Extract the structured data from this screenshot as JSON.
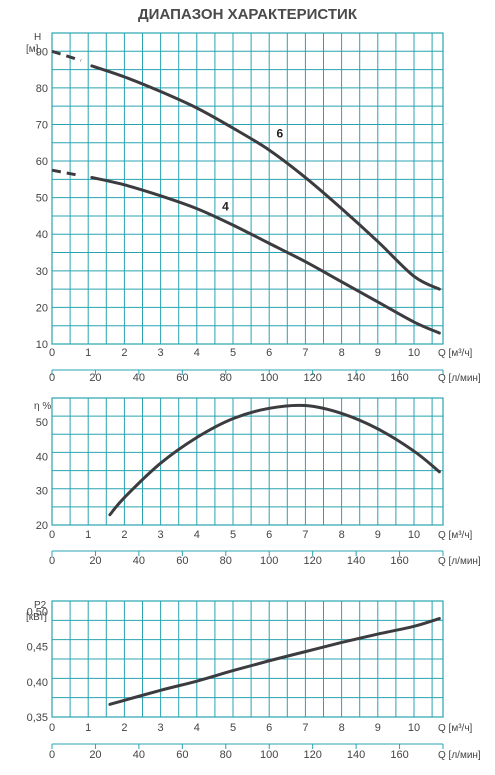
{
  "title": "ДИАПАЗОН ХАРАКТЕРИСТИК",
  "chart_data": [
    {
      "type": "line",
      "ylabel": "H",
      "yunit": "[м]",
      "xunit_q": "Q [м³/ч]",
      "xunit_l": "Q [л/мин]",
      "xlim": [
        0,
        10.8
      ],
      "ylim": [
        10,
        95
      ],
      "yticks": [
        10,
        20,
        30,
        40,
        50,
        60,
        70,
        80,
        90
      ],
      "xticks": [
        "0",
        "1",
        "2",
        "3",
        "4",
        "5",
        "6",
        "7",
        "8",
        "9",
        "10"
      ],
      "lticks": [
        "0",
        "20",
        "40",
        "60",
        "80",
        "100",
        "120",
        "140",
        "160"
      ],
      "series": [
        {
          "name": "6",
          "dashed": [
            [
              0,
              90
            ],
            [
              0.8,
              87.5
            ]
          ],
          "points": [
            [
              1.1,
              86
            ],
            [
              2,
              83
            ],
            [
              3,
              79
            ],
            [
              4,
              74.5
            ],
            [
              5,
              69
            ],
            [
              6,
              63
            ],
            [
              7,
              55.5
            ],
            [
              8,
              47
            ],
            [
              9,
              38
            ],
            [
              10,
              28.5
            ],
            [
              10.7,
              25
            ]
          ]
        },
        {
          "name": "4",
          "dashed": [
            [
              0,
              57.5
            ],
            [
              0.8,
              56
            ]
          ],
          "points": [
            [
              1.1,
              55.5
            ],
            [
              2,
              53.5
            ],
            [
              3,
              50.5
            ],
            [
              4,
              47
            ],
            [
              5,
              42.5
            ],
            [
              6,
              37.5
            ],
            [
              7,
              32.5
            ],
            [
              8,
              27
            ],
            [
              9,
              21.5
            ],
            [
              10,
              16
            ],
            [
              10.7,
              13
            ]
          ]
        }
      ]
    },
    {
      "type": "line",
      "ylabel": "η %",
      "xunit_q": "Q [м³/ч]",
      "xunit_l": "Q [л/мин]",
      "xlim": [
        0,
        10.8
      ],
      "ylim": [
        20,
        57
      ],
      "yticks": [
        20,
        30,
        40,
        50
      ],
      "xticks": [
        "0",
        "1",
        "2",
        "3",
        "4",
        "5",
        "6",
        "7",
        "8",
        "9",
        "10"
      ],
      "lticks": [
        "0",
        "20",
        "40",
        "60",
        "80",
        "100",
        "120",
        "140",
        "160"
      ],
      "series": [
        {
          "name": "",
          "points": [
            [
              1.6,
              23
            ],
            [
              2,
              28
            ],
            [
              3,
              38
            ],
            [
              4,
              45.5
            ],
            [
              5,
              51
            ],
            [
              6,
              54
            ],
            [
              7,
              54.8
            ],
            [
              8,
              52.5
            ],
            [
              9,
              48
            ],
            [
              10,
              41.5
            ],
            [
              10.7,
              35.5
            ]
          ]
        }
      ]
    },
    {
      "type": "line",
      "ylabel": "P2",
      "yunit": "[кВт]",
      "xunit_q": "Q [м³/ч]",
      "xunit_l": "Q [л/мин]",
      "xlim": [
        0,
        10.8
      ],
      "ylim": [
        0.35,
        0.515
      ],
      "yticks": [
        "0,35",
        "0,40",
        "0,45",
        "0,50"
      ],
      "yvals": [
        0.35,
        0.4,
        0.45,
        0.5
      ],
      "xticks": [
        "0",
        "1",
        "2",
        "3",
        "4",
        "5",
        "6",
        "7",
        "8",
        "9",
        "10"
      ],
      "lticks": [
        "0",
        "20",
        "40",
        "60",
        "80",
        "100",
        "120",
        "140",
        "160"
      ],
      "series": [
        {
          "name": "",
          "points": [
            [
              1.6,
              0.368
            ],
            [
              3,
              0.388
            ],
            [
              4,
              0.401
            ],
            [
              5,
              0.416
            ],
            [
              6,
              0.43
            ],
            [
              7,
              0.443
            ],
            [
              8,
              0.456
            ],
            [
              9,
              0.468
            ],
            [
              10,
              0.479
            ],
            [
              10.7,
              0.49
            ]
          ]
        }
      ]
    }
  ]
}
